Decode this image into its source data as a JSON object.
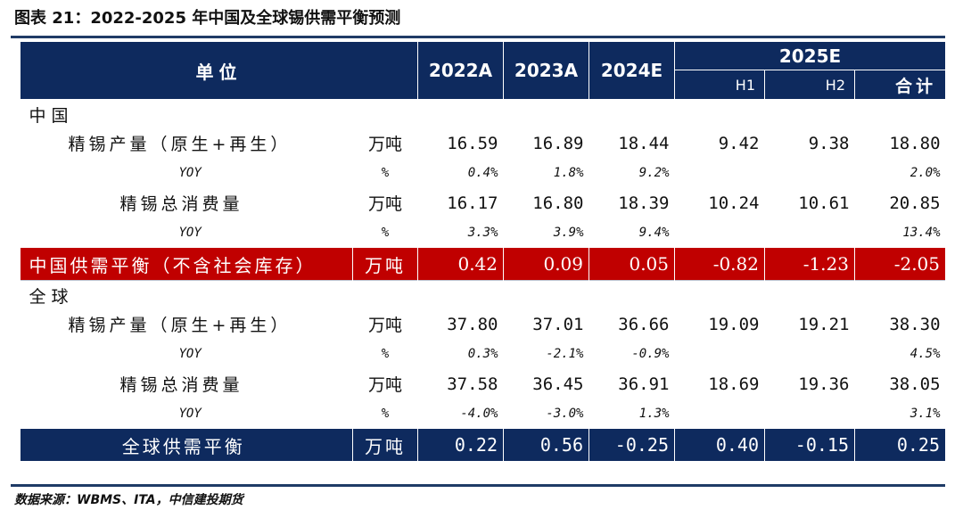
{
  "title": "图表 21：2022-2025 年中国及全球锡供需平衡预测",
  "source": "数据来源：WBMS、ITA，中信建投期货",
  "header": {
    "unit": "单位",
    "years": [
      "2022A",
      "2023A",
      "2024E"
    ],
    "y2025": "2025E",
    "h1": "H1",
    "h2": "H2",
    "total": "合计"
  },
  "china": {
    "label": "中国",
    "rows": [
      {
        "name": "精锡产量（原生+再生）",
        "unit": "万吨",
        "v": [
          "16.59",
          "16.89",
          "18.44",
          "9.42",
          "9.38",
          "18.80"
        ]
      },
      {
        "name": "YOY",
        "unit": "%",
        "v": [
          "0.4%",
          "1.8%",
          "9.2%",
          "",
          "",
          "2.0%"
        ]
      },
      {
        "name": "精锡总消费量",
        "unit": "万吨",
        "v": [
          "16.17",
          "16.80",
          "18.39",
          "10.24",
          "10.61",
          "20.85"
        ]
      },
      {
        "name": "YOY",
        "unit": "%",
        "v": [
          "3.3%",
          "3.9%",
          "9.4%",
          "",
          "",
          "13.4%"
        ]
      }
    ],
    "balance": {
      "name": "中国供需平衡（不含社会库存）",
      "unit": "万吨",
      "v": [
        "0.42",
        "0.09",
        "0.05",
        "-0.82",
        "-1.23",
        "-2.05"
      ]
    }
  },
  "global": {
    "label": "全球",
    "rows": [
      {
        "name": "精锡产量（原生+再生）",
        "unit": "万吨",
        "v": [
          "37.80",
          "37.01",
          "36.66",
          "19.09",
          "19.21",
          "38.30"
        ]
      },
      {
        "name": "YOY",
        "unit": "%",
        "v": [
          "0.3%",
          "-2.1%",
          "-0.9%",
          "",
          "",
          "4.5%"
        ]
      },
      {
        "name": "精锡总消费量",
        "unit": "万吨",
        "v": [
          "37.58",
          "36.45",
          "36.91",
          "18.69",
          "19.36",
          "38.05"
        ]
      },
      {
        "name": "YOY",
        "unit": "%",
        "v": [
          "-4.0%",
          "-3.0%",
          "1.3%",
          "",
          "",
          "3.1%"
        ]
      }
    ],
    "balance": {
      "name": "全球供需平衡",
      "unit": "万吨",
      "v": [
        "0.22",
        "0.56",
        "-0.25",
        "0.40",
        "-0.15",
        "0.25"
      ]
    }
  }
}
